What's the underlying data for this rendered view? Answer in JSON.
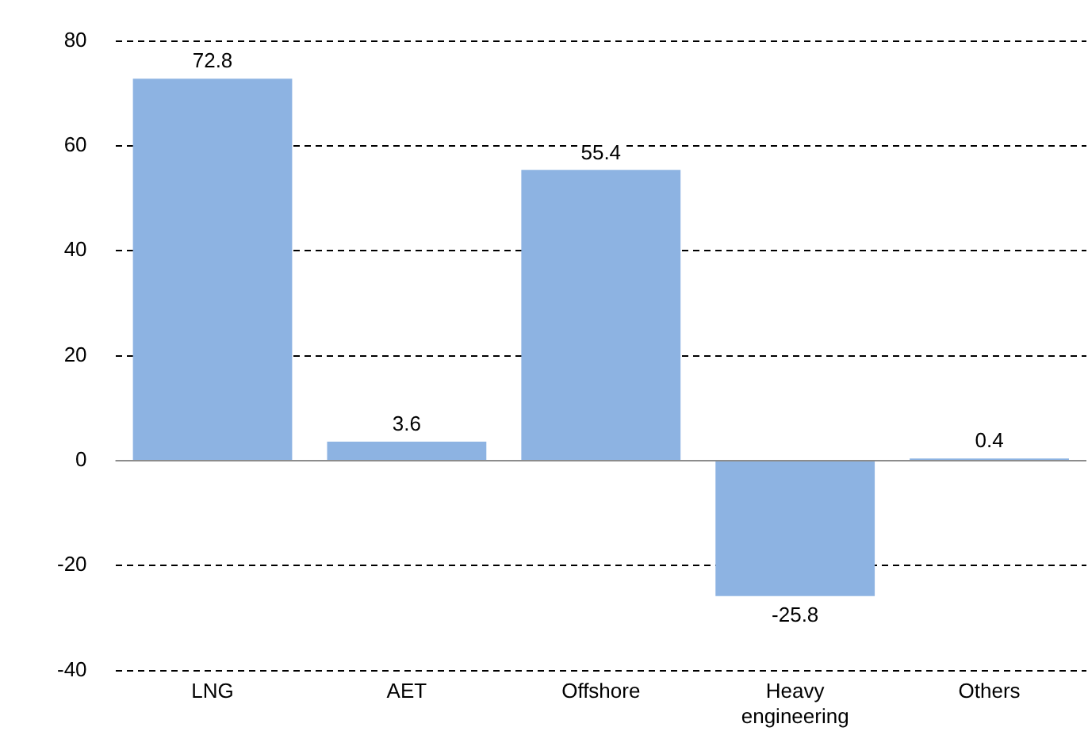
{
  "chart_data": {
    "type": "bar",
    "categories": [
      "LNG",
      "AET",
      "Offshore",
      "Heavy engineering",
      "Others"
    ],
    "values": [
      72.8,
      3.6,
      55.4,
      -25.8,
      0.4
    ],
    "color": "#8db3e2",
    "ylim": [
      -40,
      80
    ],
    "yticks": [
      -40,
      -20,
      0,
      20,
      40,
      60,
      80
    ],
    "grid": "y",
    "data_labels": true,
    "legend": false
  }
}
